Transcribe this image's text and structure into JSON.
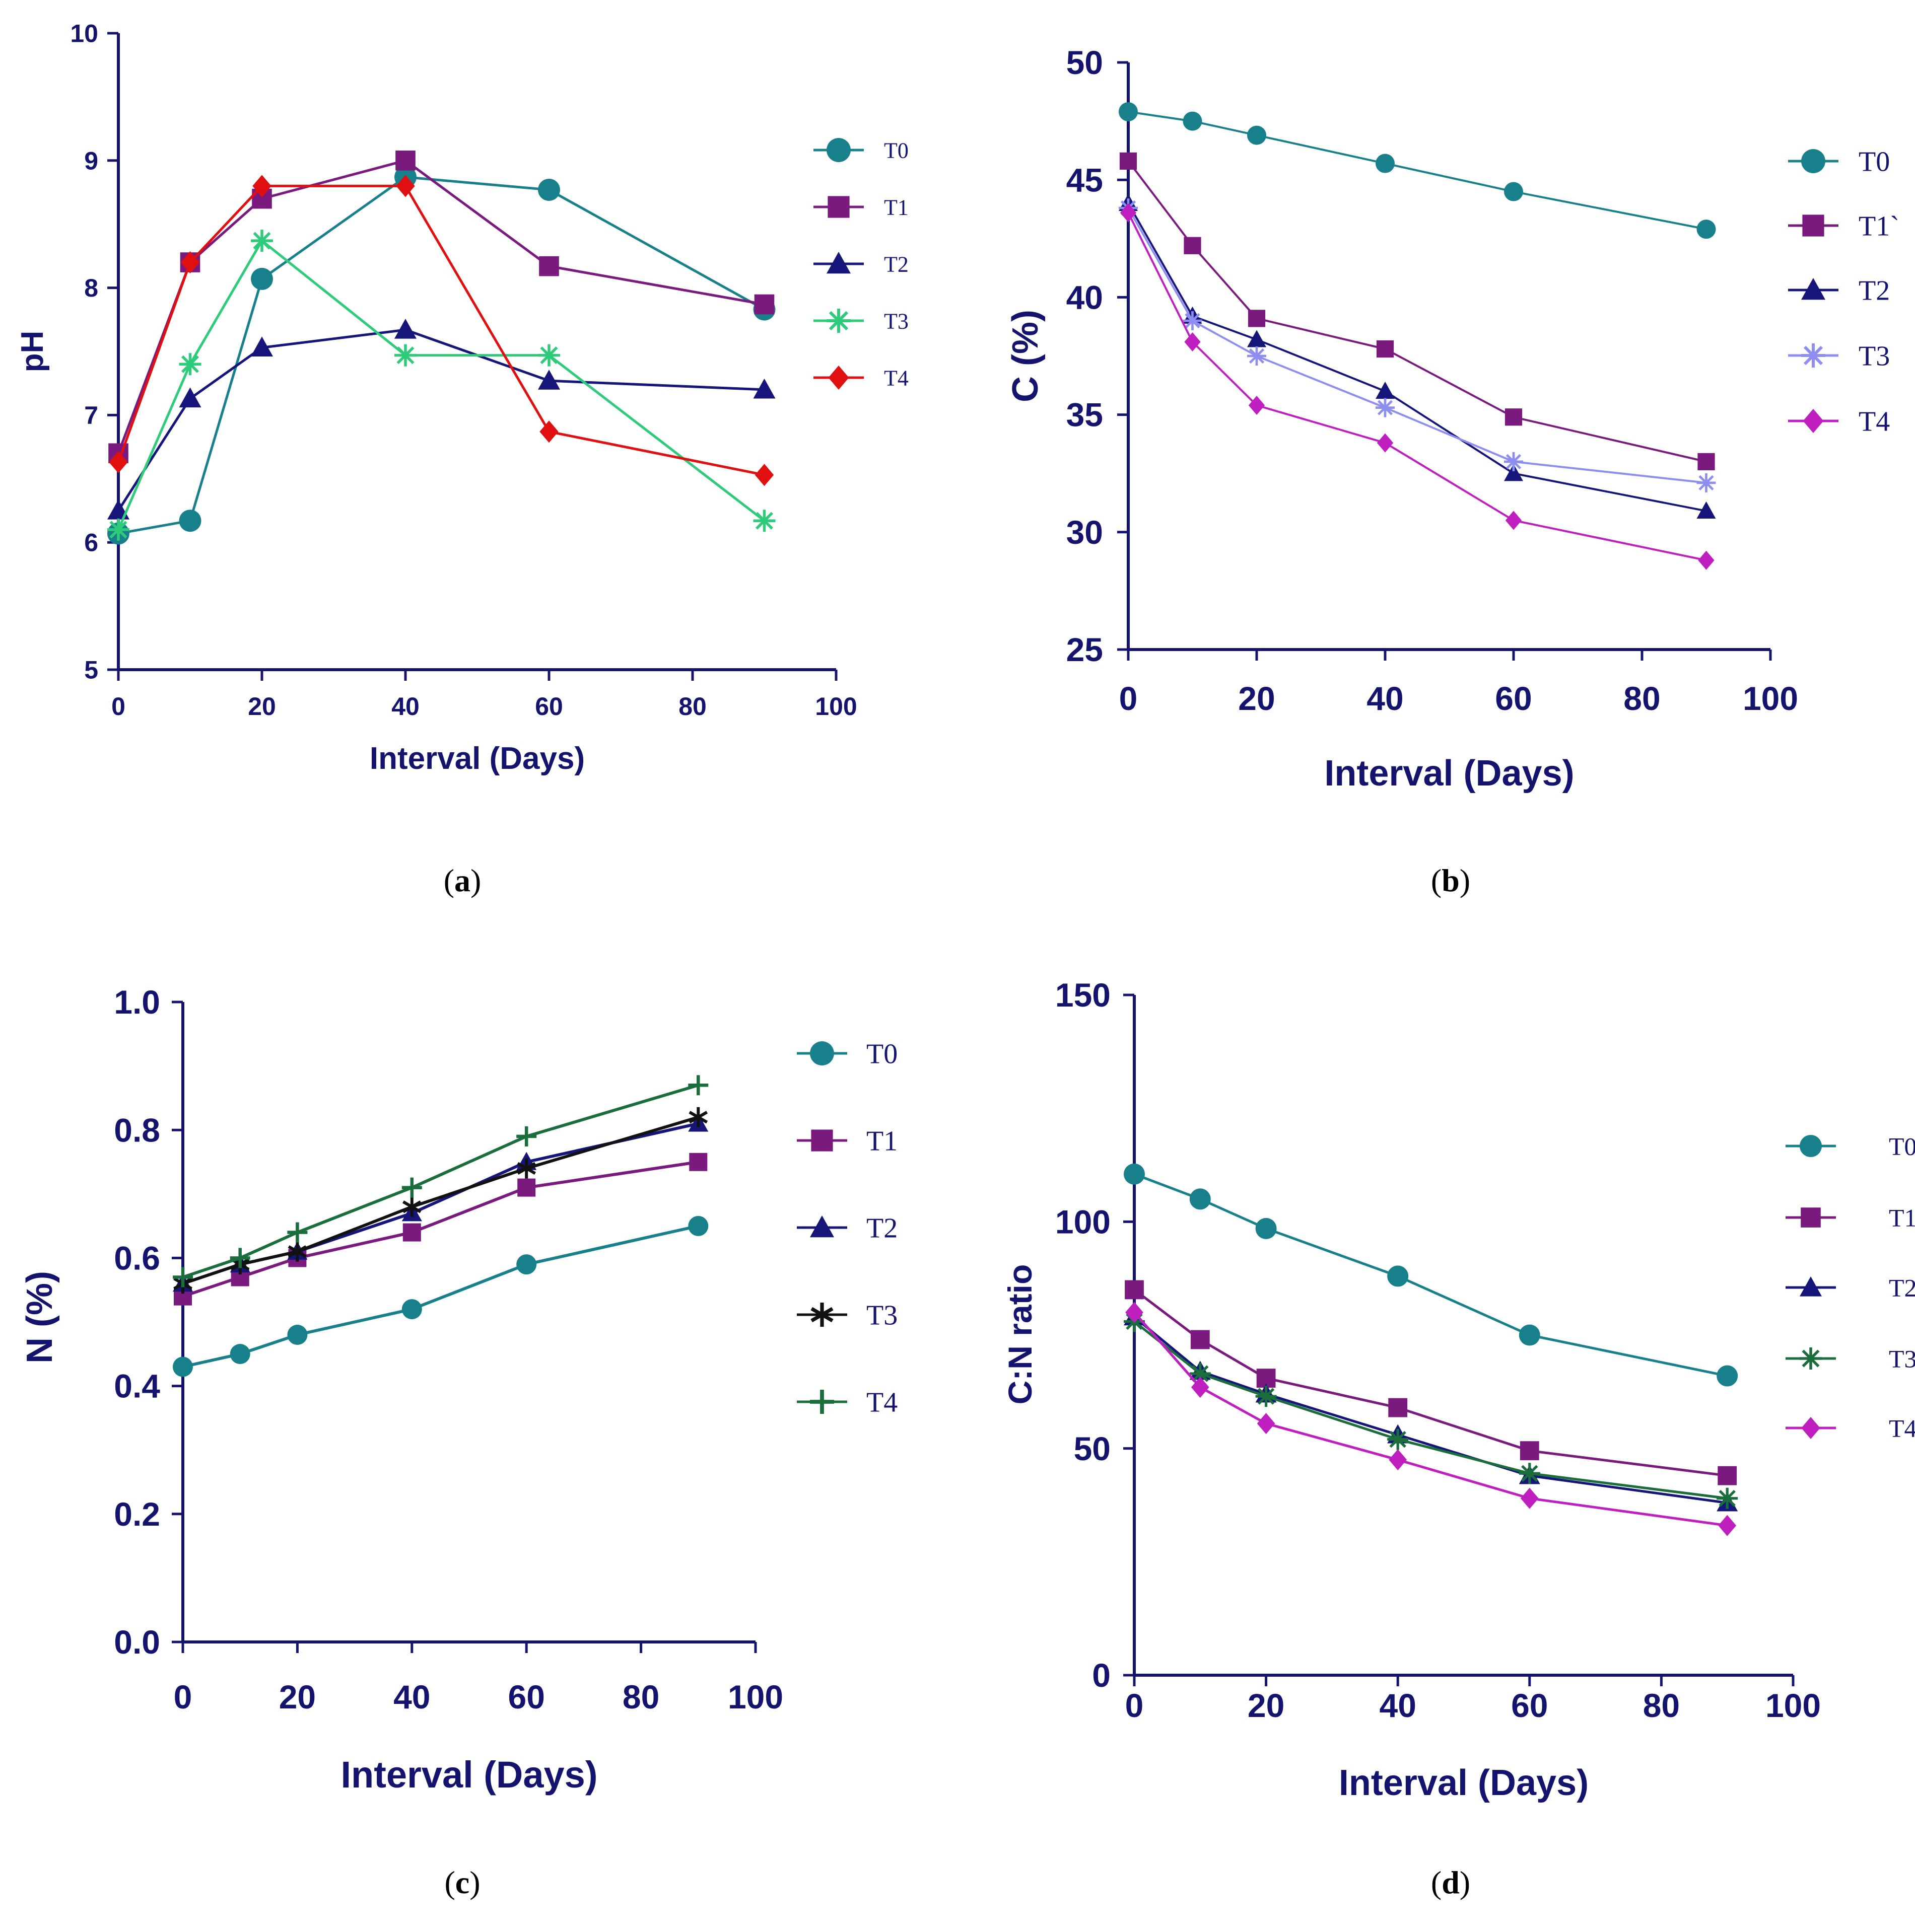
{
  "chart_data": [
    {
      "id": "a",
      "type": "line",
      "caption": "(a)",
      "ylabel": "pH",
      "xlabel": "Interval (Days)",
      "xlim": [
        0,
        100
      ],
      "ylim": [
        5,
        10
      ],
      "xticks": [
        0,
        20,
        40,
        60,
        80,
        100
      ],
      "yticks": [
        5,
        6,
        7,
        8,
        9,
        10
      ],
      "x": [
        0,
        10,
        20,
        40,
        60,
        90
      ],
      "series": [
        {
          "name": "T0",
          "color": "#17808a",
          "marker": "circle",
          "values": [
            6.07,
            6.17,
            8.07,
            8.87,
            8.77,
            7.83
          ]
        },
        {
          "name": "T1",
          "color": "#7a1a7e",
          "marker": "square",
          "values": [
            6.7,
            8.2,
            8.7,
            9.0,
            8.17,
            7.87
          ]
        },
        {
          "name": "T2",
          "color": "#15157a",
          "marker": "triangle",
          "values": [
            6.25,
            7.13,
            7.53,
            7.67,
            7.27,
            7.2
          ]
        },
        {
          "name": "T3",
          "color": "#2ecb7a",
          "marker": "asterisk",
          "values": [
            6.1,
            7.4,
            8.37,
            7.47,
            7.47,
            6.17
          ]
        },
        {
          "name": "T4",
          "color": "#e01010",
          "marker": "diamond",
          "values": [
            6.63,
            8.2,
            8.8,
            8.8,
            6.87,
            6.53
          ]
        }
      ]
    },
    {
      "id": "b",
      "type": "line",
      "caption": "(b)",
      "ylabel": "C (%)",
      "xlabel": "Interval (Days)",
      "xlim": [
        0,
        100
      ],
      "ylim": [
        25,
        50
      ],
      "xticks": [
        0,
        20,
        40,
        60,
        80,
        100
      ],
      "yticks": [
        25,
        30,
        35,
        40,
        45,
        50
      ],
      "x": [
        0,
        10,
        20,
        40,
        60,
        90
      ],
      "series": [
        {
          "name": "T0",
          "color": "#17808a",
          "marker": "circle",
          "values": [
            47.9,
            47.5,
            46.9,
            45.7,
            44.5,
            42.9
          ]
        },
        {
          "name": "T1`",
          "color": "#7a1a7e",
          "marker": "square",
          "values": [
            45.8,
            42.2,
            39.1,
            37.8,
            34.9,
            33.0
          ]
        },
        {
          "name": "T2",
          "color": "#15157a",
          "marker": "triangle",
          "values": [
            44.0,
            39.2,
            38.2,
            36.0,
            32.5,
            30.9
          ]
        },
        {
          "name": "T3",
          "color": "#8e8ef0",
          "marker": "asterisk",
          "values": [
            43.8,
            39.0,
            37.5,
            35.3,
            33.0,
            32.1
          ]
        },
        {
          "name": "T4",
          "color": "#c01fc0",
          "marker": "diamond",
          "values": [
            43.6,
            38.1,
            35.4,
            33.8,
            30.5,
            28.8
          ]
        }
      ]
    },
    {
      "id": "c",
      "type": "line",
      "caption": "(c)",
      "ylabel": "N (%)",
      "xlabel": "Interval (Days)",
      "xlim": [
        0,
        100
      ],
      "ylim": [
        0.0,
        1.0
      ],
      "xticks": [
        0,
        20,
        40,
        60,
        80,
        100
      ],
      "yticks": [
        "0.0",
        "0.2",
        "0.4",
        "0.6",
        "0.8",
        "1.0"
      ],
      "x": [
        0,
        10,
        20,
        40,
        60,
        90
      ],
      "series": [
        {
          "name": "T0",
          "color": "#17808a",
          "marker": "circle",
          "values": [
            0.43,
            0.45,
            0.48,
            0.52,
            0.59,
            0.65
          ]
        },
        {
          "name": "T1",
          "color": "#7a1a7e",
          "marker": "square",
          "values": [
            0.54,
            0.57,
            0.6,
            0.64,
            0.71,
            0.75
          ]
        },
        {
          "name": "T2",
          "color": "#15157a",
          "marker": "triangle",
          "values": [
            0.56,
            0.59,
            0.61,
            0.67,
            0.75,
            0.81
          ]
        },
        {
          "name": "T3",
          "color": "#111111",
          "marker": "star",
          "values": [
            0.56,
            0.59,
            0.61,
            0.68,
            0.74,
            0.82
          ]
        },
        {
          "name": "T4",
          "color": "#1a6e3c",
          "marker": "plus",
          "values": [
            0.57,
            0.6,
            0.64,
            0.71,
            0.79,
            0.87
          ]
        }
      ]
    },
    {
      "id": "d",
      "type": "line",
      "caption": "(d)",
      "ylabel": "C:N ratio",
      "xlabel": "Interval (Days)",
      "xlim": [
        0,
        100
      ],
      "ylim": [
        0,
        150
      ],
      "xticks": [
        0,
        20,
        40,
        60,
        80,
        100
      ],
      "yticks": [
        0,
        50,
        100,
        150
      ],
      "x": [
        0,
        10,
        20,
        40,
        60,
        90
      ],
      "series": [
        {
          "name": "T0",
          "color": "#17808a",
          "marker": "circle",
          "values": [
            110.5,
            105.0,
            98.5,
            88.0,
            75.0,
            66.0
          ]
        },
        {
          "name": "T1",
          "color": "#7a1a7e",
          "marker": "square",
          "values": [
            85.0,
            74.0,
            65.5,
            59.0,
            49.5,
            44.0
          ]
        },
        {
          "name": "T2",
          "color": "#15157a",
          "marker": "triangle",
          "values": [
            79.0,
            67.0,
            62.0,
            53.0,
            44.0,
            38.0
          ]
        },
        {
          "name": "T3",
          "color": "#1a6e3c",
          "marker": "asterisk",
          "values": [
            78.0,
            66.5,
            61.5,
            52.0,
            44.5,
            39.0
          ]
        },
        {
          "name": "T4",
          "color": "#c01fc0",
          "marker": "diamond",
          "values": [
            80.0,
            63.5,
            55.5,
            47.5,
            39.0,
            33.0
          ]
        }
      ]
    }
  ]
}
